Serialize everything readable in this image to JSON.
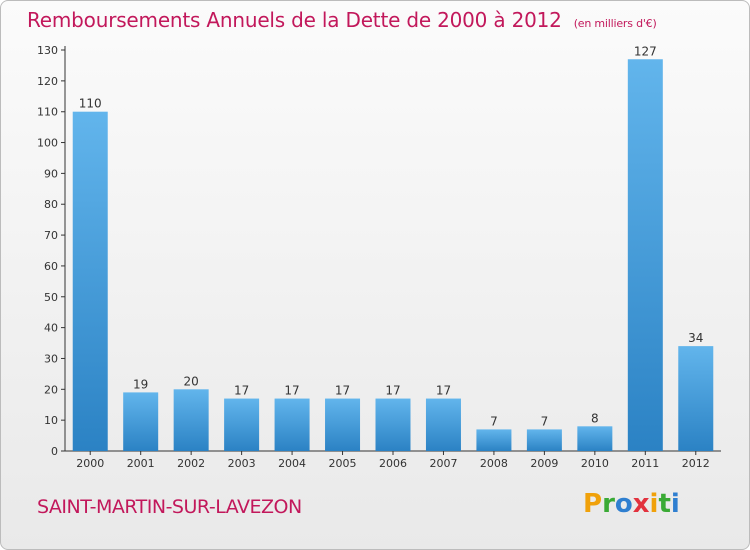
{
  "chart_data": {
    "type": "bar",
    "title": "Remboursements Annuels de la Dette de 2000 à 2012",
    "unit_note": "(en milliers d'€)",
    "categories": [
      "2000",
      "2001",
      "2002",
      "2003",
      "2004",
      "2005",
      "2006",
      "2007",
      "2008",
      "2009",
      "2010",
      "2011",
      "2012"
    ],
    "values": [
      110,
      19,
      20,
      17,
      17,
      17,
      17,
      17,
      7,
      7,
      8,
      127,
      34
    ],
    "value_labels": [
      "110",
      "19",
      "20",
      "17",
      "17",
      "17",
      "17",
      "17",
      "7",
      "7",
      "8",
      "127",
      "34"
    ],
    "ylim": [
      0,
      130
    ],
    "yticks": [
      0,
      10,
      20,
      30,
      40,
      50,
      60,
      70,
      80,
      90,
      100,
      110,
      120,
      130
    ],
    "grid": false,
    "bar_color_top": "#62b5ec",
    "bar_color_bottom": "#2b82c4"
  },
  "commune": "SAINT-MARTIN-SUR-LAVEZON",
  "brand": {
    "letters": [
      "P",
      "r",
      "o",
      "x",
      "i",
      "t",
      "i"
    ],
    "colors": [
      "#f0a10a",
      "#3aaa35",
      "#2f7fd0",
      "#e2323e",
      "#f0a10a",
      "#3aaa35",
      "#2f7fd0"
    ]
  },
  "colors": {
    "accent": "#c2185b",
    "axis": "#333333"
  }
}
